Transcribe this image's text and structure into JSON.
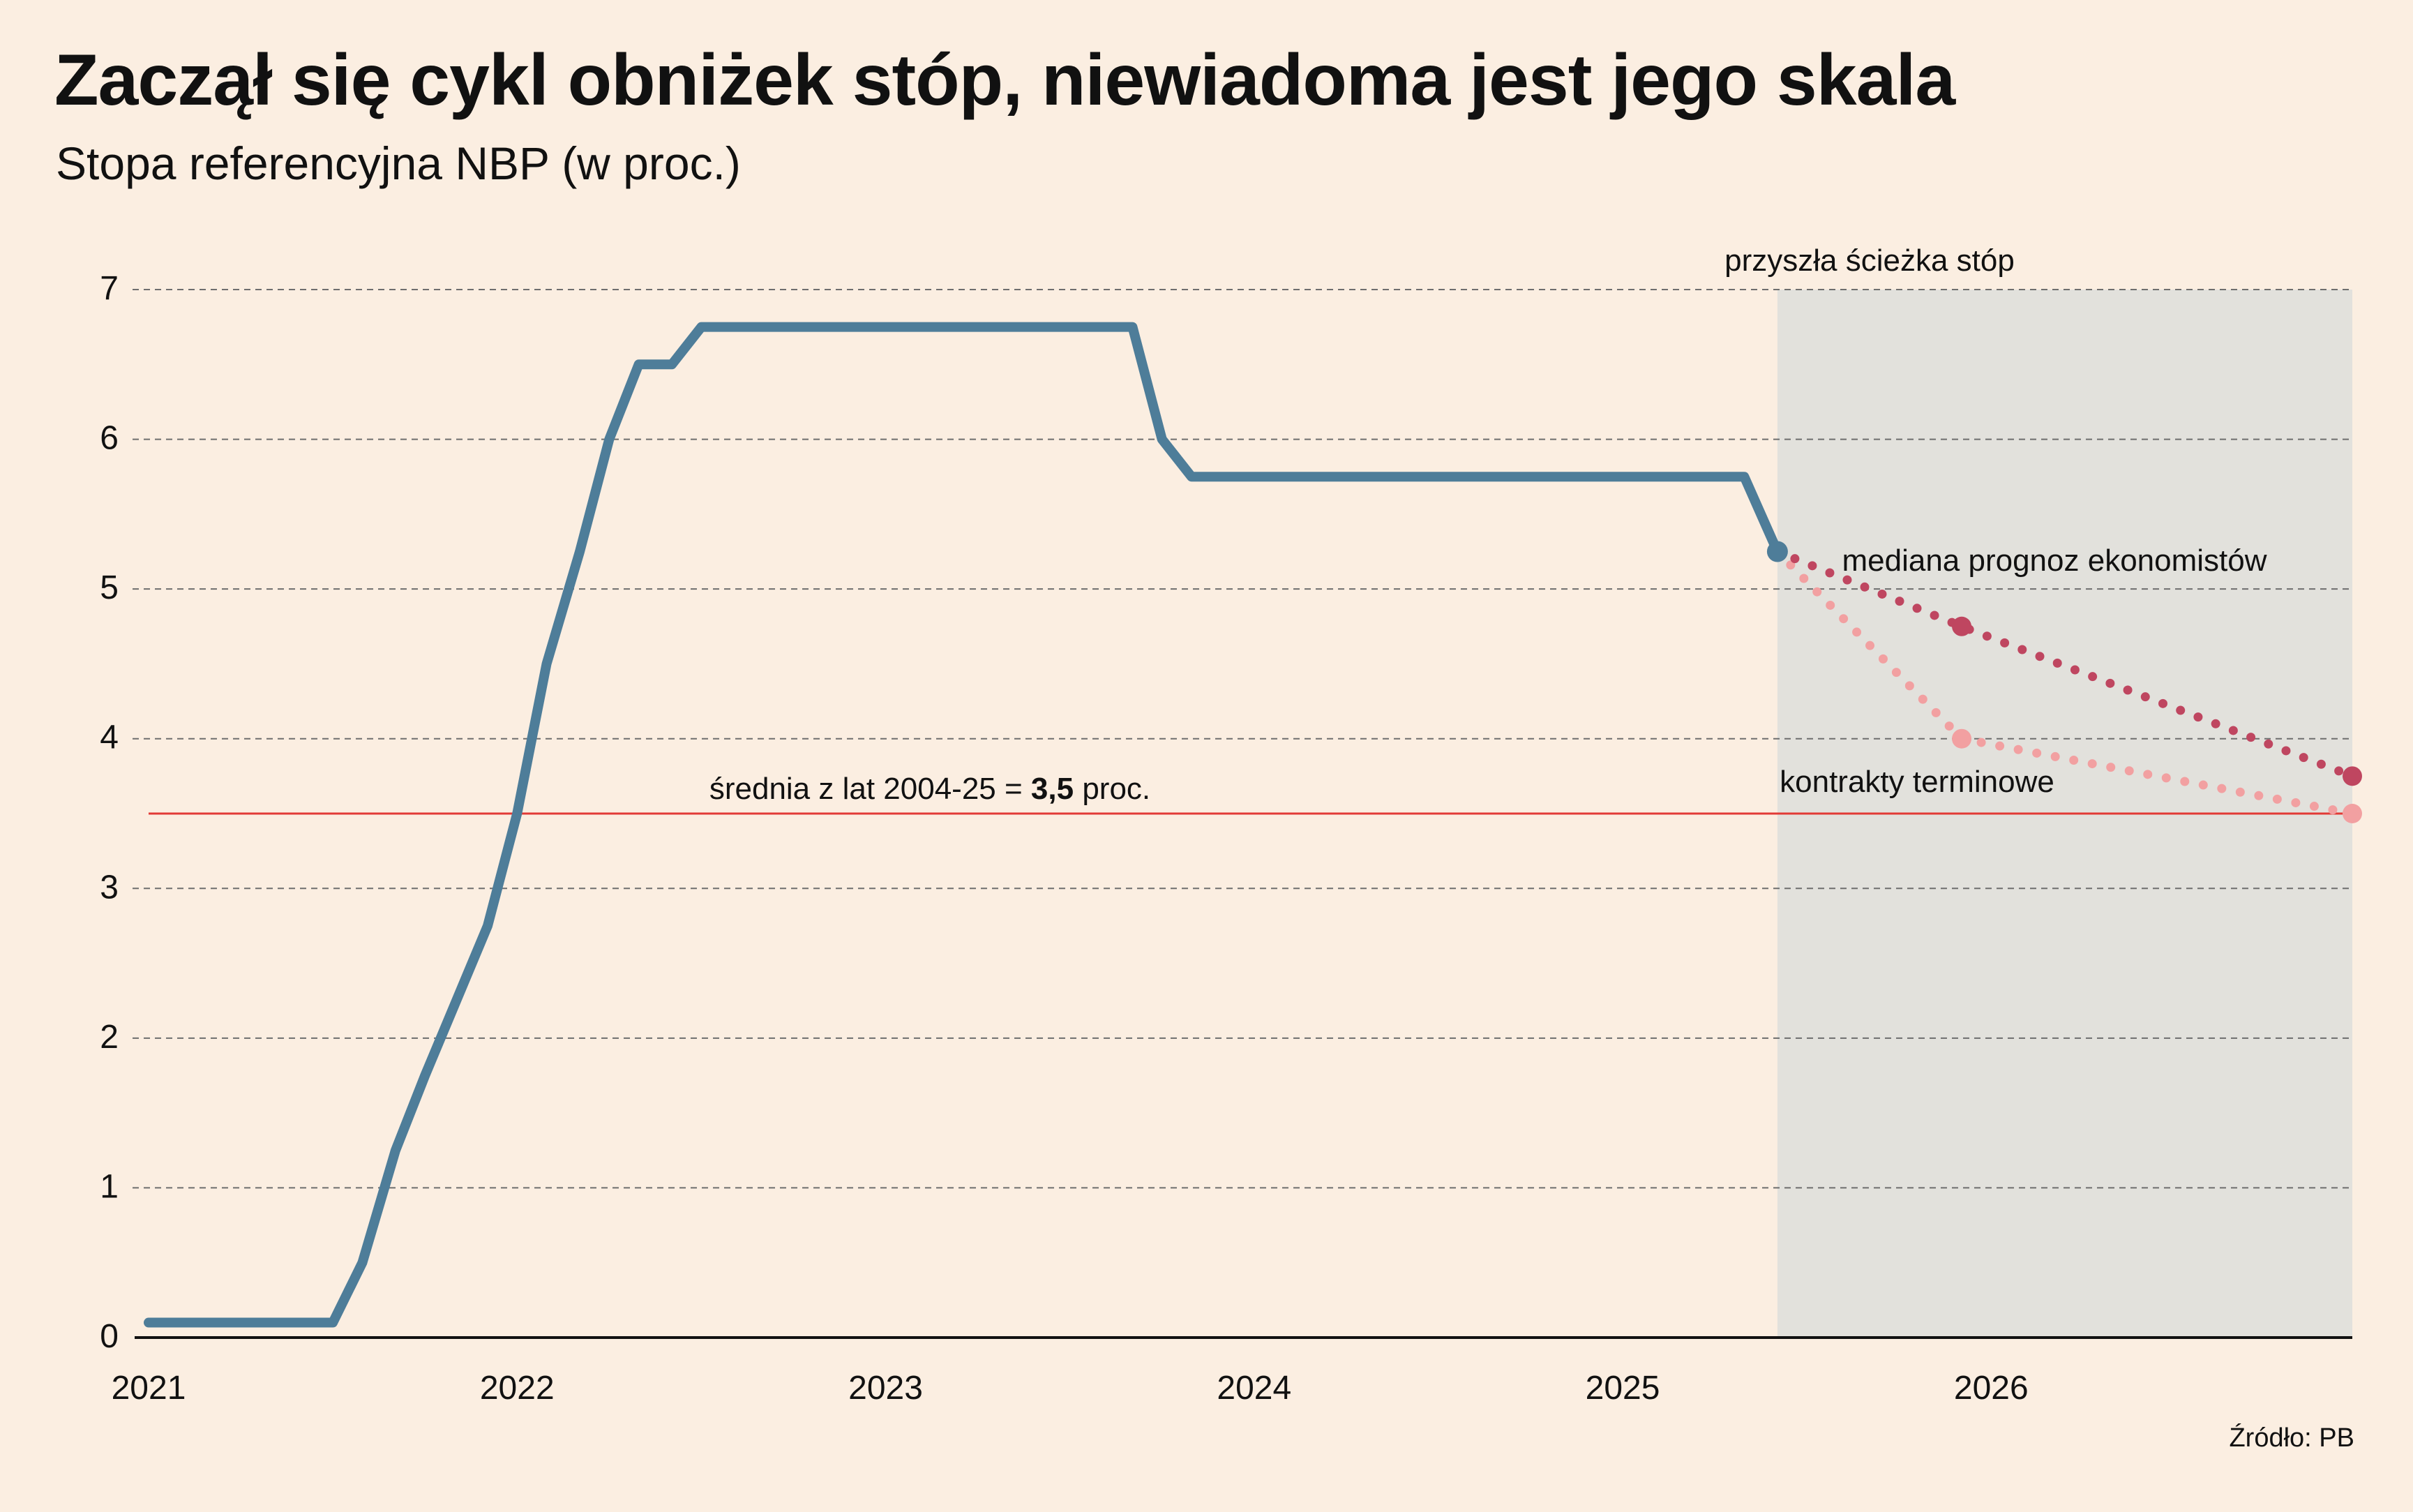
{
  "title": "Zaczął się cykl obniżek stóp, niewiadoma jest jego skala",
  "subtitle": "Stopa referencyjna NBP (w proc.)",
  "source": "Źródło: PB",
  "colors": {
    "background": "#FBEEE1",
    "forecast_zone": "#E2E1DC",
    "rate_line": "#4E7D99",
    "median_forecast": "#BF4660",
    "futures_forecast": "#F2A0A1",
    "average_line": "#E23A36",
    "grid": "#6E6E6E"
  },
  "annotations": {
    "forecast_zone_label": "przyszła ścieżka stóp",
    "median_label": "mediana prognoz ekonomistów",
    "futures_label": "kontrakty terminowe",
    "average_label_prefix": "średnia z lat 2004-25 = ",
    "average_label_value": "3,5",
    "average_label_suffix": " proc."
  },
  "chart_data": {
    "type": "line",
    "x_unit": "year",
    "xlim": [
      2021.0,
      2026.98
    ],
    "ylim": [
      0,
      7
    ],
    "yticks": [
      "0",
      "1",
      "2",
      "3",
      "4",
      "5",
      "6",
      "7"
    ],
    "xticks": [
      "2021",
      "2022",
      "2023",
      "2024",
      "2025",
      "2026"
    ],
    "grid": "horizontal dashed",
    "series": [
      {
        "points": [
          [
            2021.0,
            0.1
          ],
          [
            2021.5,
            0.1
          ],
          [
            2021.58,
            0.5
          ],
          [
            2021.67,
            1.25
          ],
          [
            2021.75,
            1.75
          ],
          [
            2021.92,
            2.75
          ],
          [
            2022.0,
            3.5
          ],
          [
            2022.08,
            4.5
          ],
          [
            2022.17,
            5.25
          ],
          [
            2022.25,
            6.0
          ],
          [
            2022.33,
            6.5
          ],
          [
            2022.42,
            6.5
          ],
          [
            2022.5,
            6.75
          ],
          [
            2023.67,
            6.75
          ],
          [
            2023.75,
            6.0
          ],
          [
            2023.83,
            5.75
          ],
          [
            2025.33,
            5.75
          ],
          [
            2025.42,
            5.25
          ]
        ]
      },
      {
        "name": "mediana prognoz ekonomistów",
        "style": "dotted",
        "points": [
          [
            2025.42,
            5.25
          ],
          [
            2025.92,
            4.75
          ],
          [
            2026.98,
            3.75
          ]
        ]
      },
      {
        "name": "kontrakty terminowe",
        "style": "dotted",
        "points": [
          [
            2025.42,
            5.25
          ],
          [
            2025.92,
            4.0
          ],
          [
            2026.98,
            3.5
          ]
        ]
      }
    ],
    "reference_line": {
      "y": 3.5,
      "label": "średnia z lat 2004-25 = 3,5 proc."
    },
    "shaded_region": {
      "x_from": 2025.42,
      "x_to": 2026.98,
      "label": "przyszła ścieżka stóp"
    }
  }
}
